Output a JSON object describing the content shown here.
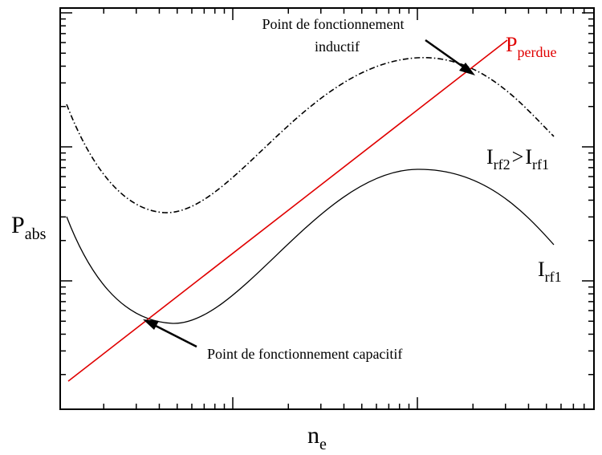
{
  "axes": {
    "x_label": {
      "main": "n",
      "sub": "e"
    },
    "y_label": {
      "main": "P",
      "sub": "abs"
    }
  },
  "annotations": {
    "inductive": [
      "Point de fonctionnement",
      "inductif"
    ],
    "capacitive": "Point de fonctionnement capacitif"
  },
  "curve_labels": {
    "loss": {
      "main": "P",
      "sub": "perdue"
    },
    "high_current": {
      "left_main": "I",
      "left_sub": "rf2",
      "relation": ">",
      "right_main": "I",
      "right_sub": "rf1"
    },
    "low_current": {
      "main": "I",
      "sub": "rf1"
    }
  }
}
